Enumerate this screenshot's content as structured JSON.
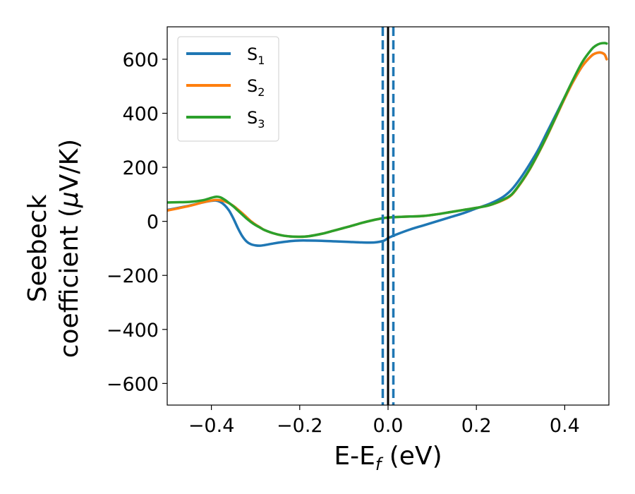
{
  "chart_data": {
    "type": "line",
    "xlabel_main": "E-E",
    "xlabel_sub": "f",
    "xlabel_unit": " (eV)",
    "ylabel_line1": "Seebeck",
    "ylabel_line2_prefix": "coefficient  (",
    "ylabel_mu": "μ",
    "ylabel_line2_suffix": "V/K)",
    "xlim": [
      -0.5,
      0.5
    ],
    "ylim": [
      -680,
      720
    ],
    "xticks": [
      -0.4,
      -0.2,
      0.0,
      0.2,
      0.4
    ],
    "xtick_labels": [
      "−0.4",
      "−0.2",
      "0.0",
      "0.2",
      "0.4"
    ],
    "yticks": [
      -600,
      -400,
      -200,
      0,
      200,
      400,
      600
    ],
    "ytick_labels": [
      "−600",
      "−400",
      "−200",
      "0",
      "200",
      "400",
      "600"
    ],
    "legend_position": "top-left",
    "vlines": [
      {
        "x": 0.0,
        "color": "#000000",
        "style": "solid"
      },
      {
        "x": -0.012,
        "color": "#1f77b4",
        "style": "dashed"
      },
      {
        "x": 0.012,
        "color": "#1f77b4",
        "style": "dashed"
      }
    ],
    "series": [
      {
        "name": "S",
        "sub": "1",
        "color": "#1f77b4",
        "x": [
          -0.5,
          -0.45,
          -0.42,
          -0.4,
          -0.39,
          -0.38,
          -0.37,
          -0.36,
          -0.35,
          -0.34,
          -0.33,
          -0.32,
          -0.31,
          -0.3,
          -0.29,
          -0.28,
          -0.26,
          -0.24,
          -0.22,
          -0.2,
          -0.18,
          -0.15,
          -0.12,
          -0.09,
          -0.06,
          -0.03,
          -0.01,
          0.0,
          0.02,
          0.05,
          0.08,
          0.11,
          0.14,
          0.17,
          0.2,
          0.23,
          0.26,
          0.28,
          0.3,
          0.32,
          0.34,
          0.36,
          0.38,
          0.4,
          0.42,
          0.44,
          0.46,
          0.47,
          0.48,
          0.49,
          0.495
        ],
        "y": [
          42,
          58,
          70,
          76,
          77,
          72,
          60,
          40,
          10,
          -25,
          -55,
          -75,
          -85,
          -89,
          -90,
          -88,
          -82,
          -77,
          -73,
          -71,
          -71,
          -72,
          -74,
          -76,
          -78,
          -78,
          -72,
          -62,
          -48,
          -30,
          -15,
          0,
          15,
          30,
          48,
          65,
          90,
          118,
          160,
          210,
          265,
          330,
          395,
          460,
          520,
          575,
          612,
          622,
          625,
          618,
          600
        ]
      },
      {
        "name": "S",
        "sub": "2",
        "color": "#ff7f0e",
        "x": [
          -0.5,
          -0.45,
          -0.42,
          -0.4,
          -0.39,
          -0.38,
          -0.37,
          -0.36,
          -0.35,
          -0.34,
          -0.33,
          -0.32,
          -0.31,
          -0.3,
          -0.29,
          -0.28,
          -0.26,
          -0.24,
          -0.22,
          -0.2,
          -0.18,
          -0.15,
          -0.12,
          -0.09,
          -0.06,
          -0.03,
          -0.01,
          0.0,
          0.02,
          0.05,
          0.08,
          0.11,
          0.14,
          0.17,
          0.2,
          0.23,
          0.26,
          0.28,
          0.3,
          0.32,
          0.34,
          0.36,
          0.38,
          0.4,
          0.42,
          0.44,
          0.46,
          0.47,
          0.48,
          0.49,
          0.495
        ],
        "y": [
          40,
          57,
          70,
          77,
          79,
          78,
          74,
          67,
          57,
          44,
          30,
          15,
          0,
          -12,
          -22,
          -32,
          -44,
          -52,
          -56,
          -57,
          -55,
          -46,
          -33,
          -20,
          -6,
          6,
          12,
          14,
          16,
          18,
          20,
          26,
          34,
          42,
          50,
          60,
          78,
          98,
          140,
          190,
          250,
          315,
          385,
          455,
          520,
          575,
          612,
          622,
          625,
          618,
          600
        ]
      },
      {
        "name": "S",
        "sub": "3",
        "color": "#2ca02c",
        "x": [
          -0.5,
          -0.45,
          -0.42,
          -0.4,
          -0.39,
          -0.38,
          -0.37,
          -0.36,
          -0.35,
          -0.34,
          -0.33,
          -0.32,
          -0.31,
          -0.3,
          -0.29,
          -0.28,
          -0.26,
          -0.24,
          -0.22,
          -0.2,
          -0.18,
          -0.15,
          -0.12,
          -0.09,
          -0.06,
          -0.03,
          -0.01,
          0.0,
          0.02,
          0.05,
          0.08,
          0.11,
          0.14,
          0.17,
          0.2,
          0.23,
          0.26,
          0.28,
          0.3,
          0.32,
          0.34,
          0.36,
          0.38,
          0.4,
          0.42,
          0.44,
          0.46,
          0.47,
          0.48,
          0.49,
          0.495
        ],
        "y": [
          70,
          72,
          78,
          87,
          91,
          89,
          80,
          68,
          55,
          40,
          25,
          10,
          -3,
          -14,
          -23,
          -32,
          -44,
          -52,
          -56,
          -57,
          -55,
          -46,
          -33,
          -20,
          -6,
          6,
          12,
          14,
          16,
          18,
          20,
          26,
          34,
          42,
          50,
          60,
          80,
          100,
          142,
          192,
          252,
          318,
          388,
          460,
          528,
          590,
          635,
          650,
          658,
          660,
          658
        ]
      }
    ]
  }
}
